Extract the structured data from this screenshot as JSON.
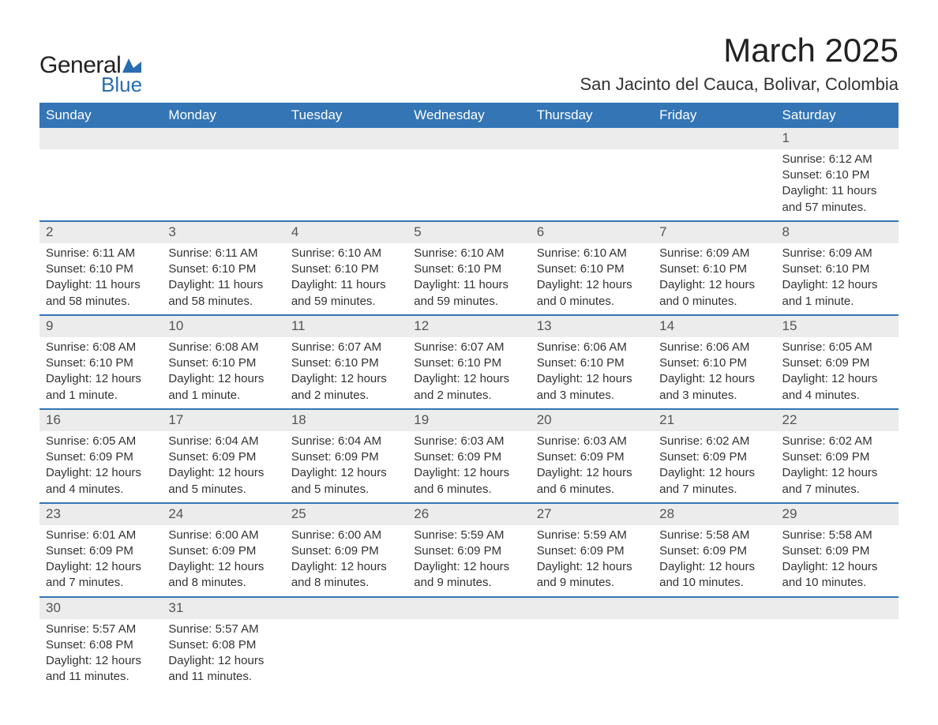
{
  "logo": {
    "text1": "General",
    "text2": "Blue",
    "accent_color": "#2a6db0"
  },
  "title": "March 2025",
  "location": "San Jacinto del Cauca, Bolivar, Colombia",
  "colors": {
    "header_bg": "#3375b5",
    "header_text": "#ffffff",
    "daynum_bg": "#ececec",
    "cell_text": "#333333",
    "border": "#3375b5"
  },
  "weekdays": [
    "Sunday",
    "Monday",
    "Tuesday",
    "Wednesday",
    "Thursday",
    "Friday",
    "Saturday"
  ],
  "weeks": [
    {
      "nums": [
        "",
        "",
        "",
        "",
        "",
        "",
        "1"
      ],
      "cells": [
        "",
        "",
        "",
        "",
        "",
        "",
        "Sunrise: 6:12 AM\nSunset: 6:10 PM\nDaylight: 11 hours and 57 minutes."
      ]
    },
    {
      "nums": [
        "2",
        "3",
        "4",
        "5",
        "6",
        "7",
        "8"
      ],
      "cells": [
        "Sunrise: 6:11 AM\nSunset: 6:10 PM\nDaylight: 11 hours and 58 minutes.",
        "Sunrise: 6:11 AM\nSunset: 6:10 PM\nDaylight: 11 hours and 58 minutes.",
        "Sunrise: 6:10 AM\nSunset: 6:10 PM\nDaylight: 11 hours and 59 minutes.",
        "Sunrise: 6:10 AM\nSunset: 6:10 PM\nDaylight: 11 hours and 59 minutes.",
        "Sunrise: 6:10 AM\nSunset: 6:10 PM\nDaylight: 12 hours and 0 minutes.",
        "Sunrise: 6:09 AM\nSunset: 6:10 PM\nDaylight: 12 hours and 0 minutes.",
        "Sunrise: 6:09 AM\nSunset: 6:10 PM\nDaylight: 12 hours and 1 minute."
      ]
    },
    {
      "nums": [
        "9",
        "10",
        "11",
        "12",
        "13",
        "14",
        "15"
      ],
      "cells": [
        "Sunrise: 6:08 AM\nSunset: 6:10 PM\nDaylight: 12 hours and 1 minute.",
        "Sunrise: 6:08 AM\nSunset: 6:10 PM\nDaylight: 12 hours and 1 minute.",
        "Sunrise: 6:07 AM\nSunset: 6:10 PM\nDaylight: 12 hours and 2 minutes.",
        "Sunrise: 6:07 AM\nSunset: 6:10 PM\nDaylight: 12 hours and 2 minutes.",
        "Sunrise: 6:06 AM\nSunset: 6:10 PM\nDaylight: 12 hours and 3 minutes.",
        "Sunrise: 6:06 AM\nSunset: 6:10 PM\nDaylight: 12 hours and 3 minutes.",
        "Sunrise: 6:05 AM\nSunset: 6:09 PM\nDaylight: 12 hours and 4 minutes."
      ]
    },
    {
      "nums": [
        "16",
        "17",
        "18",
        "19",
        "20",
        "21",
        "22"
      ],
      "cells": [
        "Sunrise: 6:05 AM\nSunset: 6:09 PM\nDaylight: 12 hours and 4 minutes.",
        "Sunrise: 6:04 AM\nSunset: 6:09 PM\nDaylight: 12 hours and 5 minutes.",
        "Sunrise: 6:04 AM\nSunset: 6:09 PM\nDaylight: 12 hours and 5 minutes.",
        "Sunrise: 6:03 AM\nSunset: 6:09 PM\nDaylight: 12 hours and 6 minutes.",
        "Sunrise: 6:03 AM\nSunset: 6:09 PM\nDaylight: 12 hours and 6 minutes.",
        "Sunrise: 6:02 AM\nSunset: 6:09 PM\nDaylight: 12 hours and 7 minutes.",
        "Sunrise: 6:02 AM\nSunset: 6:09 PM\nDaylight: 12 hours and 7 minutes."
      ]
    },
    {
      "nums": [
        "23",
        "24",
        "25",
        "26",
        "27",
        "28",
        "29"
      ],
      "cells": [
        "Sunrise: 6:01 AM\nSunset: 6:09 PM\nDaylight: 12 hours and 7 minutes.",
        "Sunrise: 6:00 AM\nSunset: 6:09 PM\nDaylight: 12 hours and 8 minutes.",
        "Sunrise: 6:00 AM\nSunset: 6:09 PM\nDaylight: 12 hours and 8 minutes.",
        "Sunrise: 5:59 AM\nSunset: 6:09 PM\nDaylight: 12 hours and 9 minutes.",
        "Sunrise: 5:59 AM\nSunset: 6:09 PM\nDaylight: 12 hours and 9 minutes.",
        "Sunrise: 5:58 AM\nSunset: 6:09 PM\nDaylight: 12 hours and 10 minutes.",
        "Sunrise: 5:58 AM\nSunset: 6:09 PM\nDaylight: 12 hours and 10 minutes."
      ]
    },
    {
      "nums": [
        "30",
        "31",
        "",
        "",
        "",
        "",
        ""
      ],
      "cells": [
        "Sunrise: 5:57 AM\nSunset: 6:08 PM\nDaylight: 12 hours and 11 minutes.",
        "Sunrise: 5:57 AM\nSunset: 6:08 PM\nDaylight: 12 hours and 11 minutes.",
        "",
        "",
        "",
        "",
        ""
      ]
    }
  ]
}
